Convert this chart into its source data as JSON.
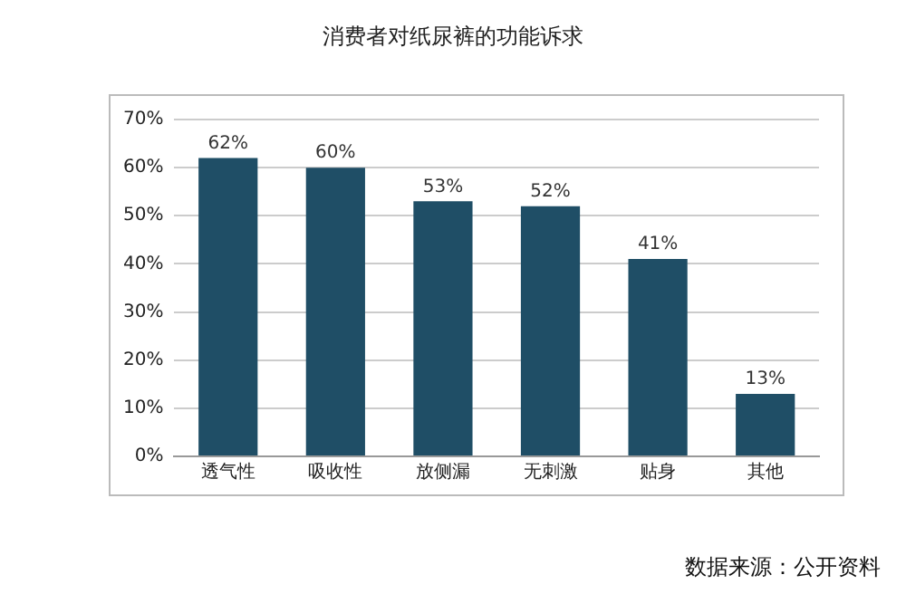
{
  "chart_data": {
    "type": "bar",
    "title": "消费者对纸尿裤的功能诉求",
    "categories": [
      "透气性",
      "吸收性",
      "放侧漏",
      "无刺激",
      "贴身",
      "其他"
    ],
    "values": [
      62,
      60,
      53,
      52,
      41,
      13
    ],
    "color": "#1f4e66",
    "value_labels": [
      "62%",
      "60%",
      "53%",
      "52%",
      "41%",
      "13%"
    ],
    "ylim": [
      0,
      70
    ],
    "yticks": [
      {
        "value": 0,
        "label": "0%"
      },
      {
        "value": 10,
        "label": "10%"
      },
      {
        "value": 20,
        "label": "20%"
      },
      {
        "value": 30,
        "label": "30%"
      },
      {
        "value": 40,
        "label": "40%"
      },
      {
        "value": 50,
        "label": "50%"
      },
      {
        "value": 60,
        "label": "60%"
      },
      {
        "value": 70,
        "label": "70%"
      }
    ],
    "grid": "y",
    "annotations": [
      "数据来源：公开资料"
    ]
  }
}
